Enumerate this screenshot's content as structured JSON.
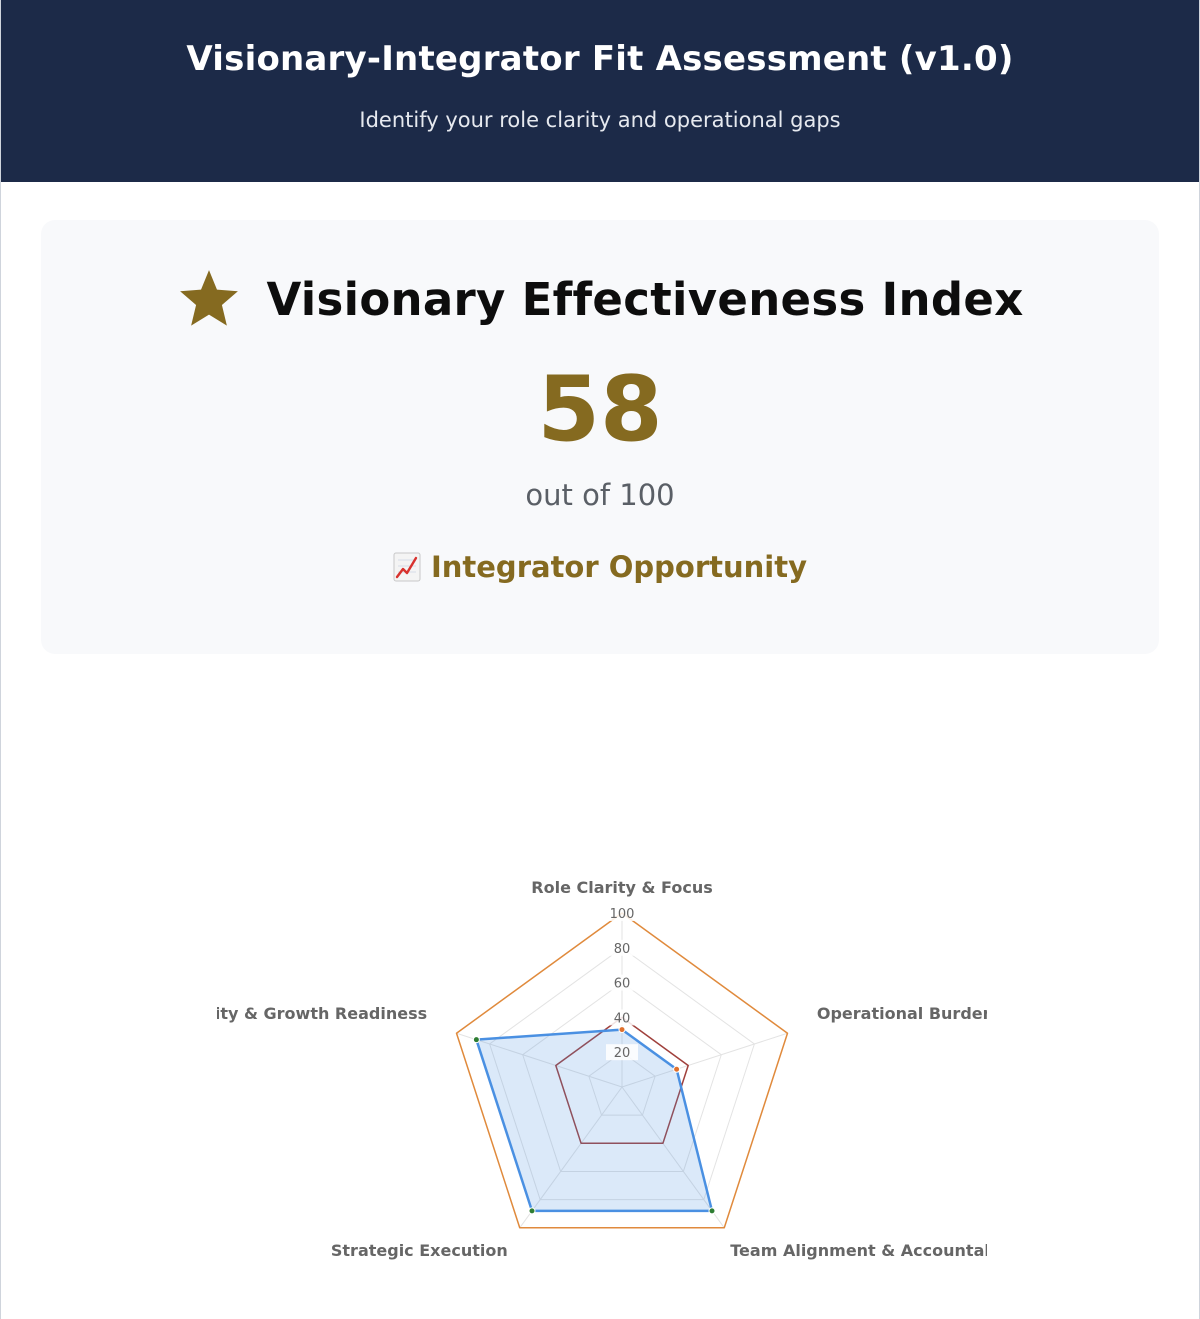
{
  "header": {
    "title": "Visionary-Integrator Fit Assessment (v1.0)",
    "subtitle": "Identify your role clarity and operational gaps"
  },
  "score_card": {
    "icon": "star-icon",
    "title": "Visionary Effectiveness Index",
    "score": "58",
    "scale": "out of 100",
    "status_icon": "chart-increasing-icon",
    "status": "Integrator Opportunity"
  },
  "colors": {
    "header_bg": "#1c2a48",
    "accent_gold": "#856a20",
    "series_blue": "#4a90e2",
    "series_orange": "#e08a3c",
    "series_red": "#a0403c"
  },
  "chart_data": {
    "type": "radar",
    "axes": [
      "Role Clarity & Focus",
      "Operational Burden",
      "Team Alignment & Accountability",
      "Strategic Execution",
      "Scalability & Growth Readiness"
    ],
    "r_ticks": [
      "20",
      "40",
      "60",
      "80",
      "100"
    ],
    "r_range": [
      0,
      100
    ],
    "grid": true,
    "legend": "none",
    "series": [
      {
        "values": [
          100,
          100,
          100,
          100,
          100
        ],
        "color": "#e08a3c",
        "fill": false
      },
      {
        "values": [
          40,
          40,
          40,
          40,
          40
        ],
        "color": "#a0403c",
        "fill": false
      },
      {
        "values": [
          33,
          33,
          88,
          88,
          88
        ],
        "color": "#4a90e2",
        "fill": true
      }
    ]
  }
}
